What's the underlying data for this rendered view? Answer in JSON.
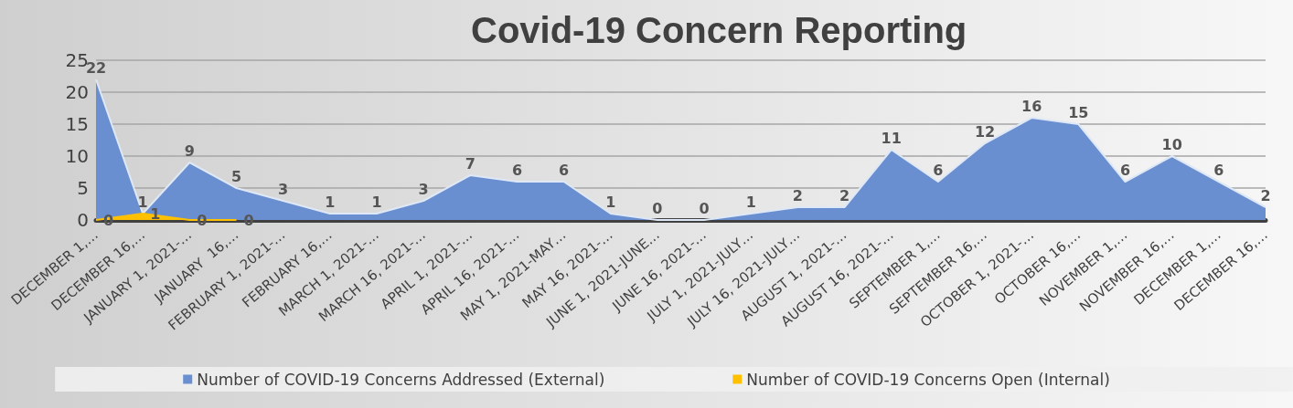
{
  "chart_data": {
    "type": "area",
    "title": "Covid-19 Concern Reporting",
    "categories": [
      "DECEMBER 1,…",
      "DECEMBER 16,…",
      "JANUARY 1, 2021-…",
      "JANUARY  16,…",
      "FEBRUARY 1, 2021-…",
      "FEBRUARY 16,…",
      "MARCH 1, 2021-…",
      "MARCH 16, 2021-…",
      "APRIL 1, 2021-…",
      "APRIL 16, 2021-…",
      "MAY 1, 2021-MAY…",
      "MAY 16, 2021-…",
      "JUNE 1, 2021-JUNE…",
      "JUNE 16, 2021-…",
      "JULY 1, 2021-JULY…",
      "JULY 16, 2021-JULY…",
      "AUGUST 1, 2021-…",
      "AUGUST 16, 2021-…",
      "SEPTEMBER 1,…",
      "SEPTEMBER 16,…",
      "OCTOBER 1, 2021-…",
      "OCTOBER 16,…",
      "NOVEMBER 1,…",
      "NOVEMBER 16,…",
      "DECEMBER 1,…",
      "DECEMBER 16,…"
    ],
    "series": [
      {
        "name": "Number of COVID-19 Concerns Addressed (External)",
        "color": "#6a8fd0",
        "values": [
          22,
          1,
          9,
          5,
          3,
          1,
          1,
          3,
          7,
          6,
          6,
          1,
          0,
          0,
          1,
          2,
          2,
          11,
          6,
          12,
          16,
          15,
          6,
          10,
          6,
          2
        ]
      },
      {
        "name": "Number of COVID-19 Concerns Open (Internal)",
        "color": "#ffc000",
        "values": [
          0,
          1,
          0,
          0,
          null,
          null,
          null,
          null,
          null,
          null,
          null,
          null,
          null,
          null,
          null,
          null,
          null,
          null,
          null,
          null,
          null,
          null,
          null,
          null,
          null,
          null
        ]
      }
    ],
    "ylim": [
      0,
      25
    ],
    "yticks": [
      0,
      5,
      10,
      15,
      20,
      25
    ],
    "grid": "y",
    "legend": "bottom",
    "data_labels": true
  }
}
